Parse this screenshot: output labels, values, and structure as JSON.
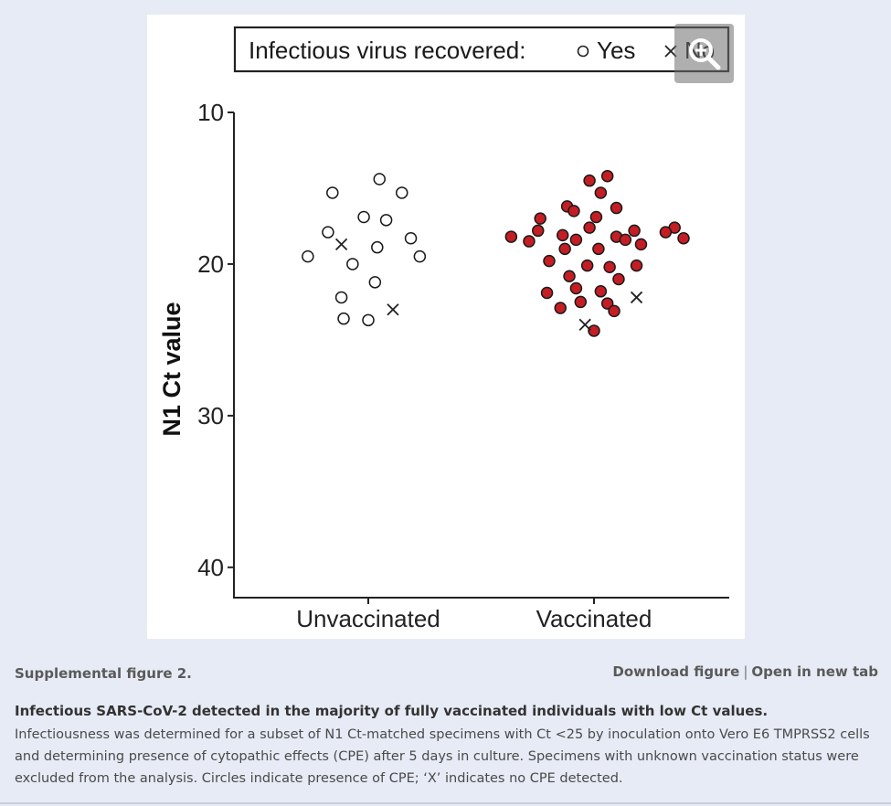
{
  "figure": {
    "label": "Supplemental figure 2.",
    "download_label": "Download figure",
    "separator": "|",
    "open_tab_label": "Open in new tab",
    "zoom_icon": "zoom-in-icon"
  },
  "caption": {
    "title": "Infectious SARS-CoV-2 detected in the majority of fully vaccinated individuals with low Ct values.",
    "body": "Infectiousness was determined for a subset of N1 Ct-matched specimens with Ct <25 by inoculation onto Vero E6 TMPRSS2 cells and determining presence of cytopathic effects (CPE) after 5 days in culture. Specimens with unknown vaccination status were excluded from the analysis. Circles indicate presence of CPE; ‘X’ indicates no CPE detected."
  },
  "chart_data": {
    "type": "scatter",
    "title": "",
    "xlabel": "",
    "ylabel": "N1 Ct value",
    "ylim": [
      10,
      42
    ],
    "y_reversed": true,
    "yticks": [
      10,
      20,
      30,
      40
    ],
    "categories": [
      "Unvaccinated",
      "Vaccinated"
    ],
    "legend": {
      "title": "Infectious virus recovered:",
      "entries": [
        "Yes",
        "No"
      ],
      "position": "top"
    },
    "series": [
      {
        "category": "Unvaccinated",
        "fill": "#ffffff",
        "yes": [
          {
            "x": 0.05,
            "y": 14.4
          },
          {
            "x": -0.16,
            "y": 15.3
          },
          {
            "x": 0.15,
            "y": 15.3
          },
          {
            "x": -0.02,
            "y": 16.9
          },
          {
            "x": 0.08,
            "y": 17.1
          },
          {
            "x": -0.18,
            "y": 17.9
          },
          {
            "x": 0.19,
            "y": 18.3
          },
          {
            "x": 0.04,
            "y": 18.9
          },
          {
            "x": -0.27,
            "y": 19.5
          },
          {
            "x": 0.23,
            "y": 19.5
          },
          {
            "x": -0.07,
            "y": 20.0
          },
          {
            "x": 0.03,
            "y": 21.2
          },
          {
            "x": -0.12,
            "y": 22.2
          },
          {
            "x": -0.11,
            "y": 23.6
          },
          {
            "x": 0.0,
            "y": 23.7
          }
        ],
        "no": [
          {
            "x": -0.12,
            "y": 18.7
          },
          {
            "x": 0.11,
            "y": 23.0
          }
        ]
      },
      {
        "category": "Vaccinated",
        "fill": "#c41e24",
        "yes": [
          {
            "x": 0.06,
            "y": 14.2
          },
          {
            "x": -0.02,
            "y": 14.5
          },
          {
            "x": 0.03,
            "y": 15.3
          },
          {
            "x": -0.12,
            "y": 16.2
          },
          {
            "x": -0.09,
            "y": 16.5
          },
          {
            "x": 0.1,
            "y": 16.3
          },
          {
            "x": 0.01,
            "y": 16.9
          },
          {
            "x": -0.24,
            "y": 17.0
          },
          {
            "x": -0.02,
            "y": 17.6
          },
          {
            "x": 0.36,
            "y": 17.6
          },
          {
            "x": -0.25,
            "y": 17.8
          },
          {
            "x": 0.18,
            "y": 17.8
          },
          {
            "x": 0.32,
            "y": 17.9
          },
          {
            "x": -0.37,
            "y": 18.2
          },
          {
            "x": -0.14,
            "y": 18.1
          },
          {
            "x": 0.1,
            "y": 18.2
          },
          {
            "x": -0.08,
            "y": 18.4
          },
          {
            "x": 0.14,
            "y": 18.4
          },
          {
            "x": 0.4,
            "y": 18.3
          },
          {
            "x": -0.29,
            "y": 18.5
          },
          {
            "x": 0.21,
            "y": 18.7
          },
          {
            "x": -0.13,
            "y": 19.0
          },
          {
            "x": 0.02,
            "y": 19.0
          },
          {
            "x": -0.2,
            "y": 19.8
          },
          {
            "x": -0.03,
            "y": 20.1
          },
          {
            "x": 0.07,
            "y": 20.2
          },
          {
            "x": 0.19,
            "y": 20.1
          },
          {
            "x": -0.11,
            "y": 20.8
          },
          {
            "x": 0.11,
            "y": 21.0
          },
          {
            "x": -0.08,
            "y": 21.6
          },
          {
            "x": 0.03,
            "y": 21.8
          },
          {
            "x": -0.21,
            "y": 21.9
          },
          {
            "x": -0.06,
            "y": 22.5
          },
          {
            "x": 0.06,
            "y": 22.6
          },
          {
            "x": -0.15,
            "y": 22.9
          },
          {
            "x": 0.09,
            "y": 23.1
          },
          {
            "x": 0.0,
            "y": 24.4
          }
        ],
        "no": [
          {
            "x": 0.19,
            "y": 22.2
          },
          {
            "x": -0.04,
            "y": 24.0
          }
        ]
      }
    ]
  }
}
